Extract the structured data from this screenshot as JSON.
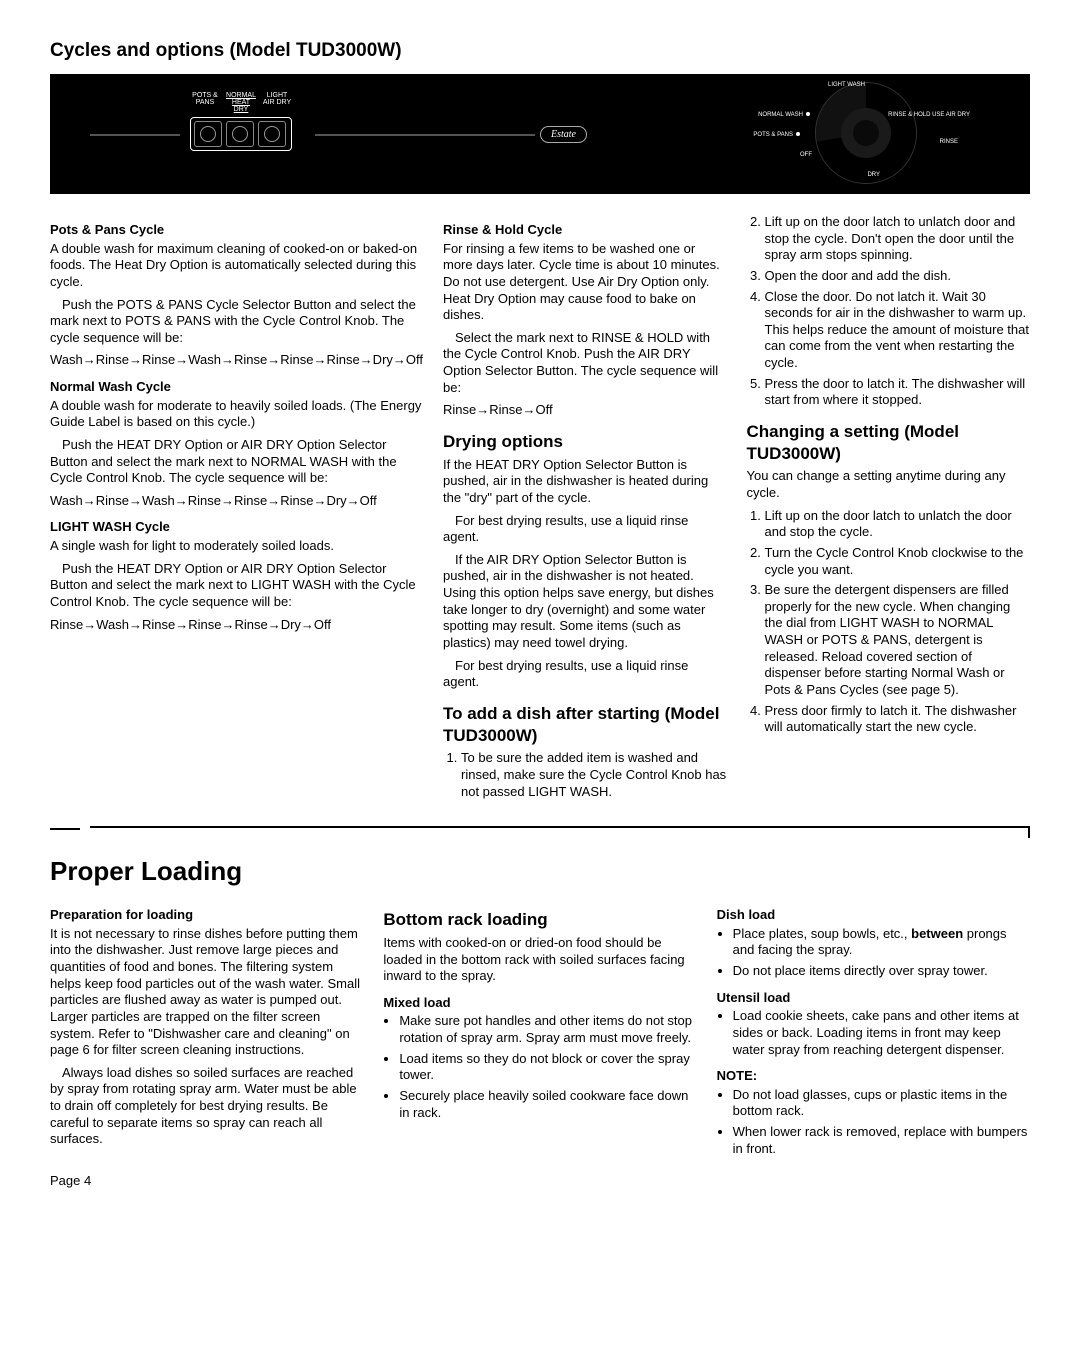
{
  "title": "Cycles and options (Model TUD3000W)",
  "panel": {
    "left_labels": [
      "POTS &\nPANS",
      "NORMAL\nHEAT\nDRY",
      "LIGHT\nAIR\nDRY"
    ],
    "badge": "Estate",
    "right": [
      "LIGHT WASH",
      "NORMAL WASH",
      "POTS & PANS",
      "OFF",
      "RINSE & HOLD\nUSE AIR DRY",
      "RINSE",
      "DRY"
    ]
  },
  "col1": {
    "s1h": "Pots & Pans Cycle",
    "s1p1": "A double wash for maximum cleaning of cooked-on or baked-on foods. The Heat Dry Option is automatically selected during this cycle.",
    "s1p2": "Push the POTS & PANS Cycle Selector Button and select the mark next to POTS & PANS with the Cycle Control Knob. The cycle sequence will be:",
    "s1p3": "Wash→Rinse→Rinse→Wash→Rinse→Rinse→Rinse→Dry→Off",
    "s2h": "Normal Wash Cycle",
    "s2p1": "A double wash for moderate to heavily soiled loads. (The Energy Guide Label is based on this cycle.)",
    "s2p2": "Push the HEAT DRY Option or AIR DRY Option Selector Button and select the mark next to NORMAL WASH with the Cycle Control Knob. The cycle sequence will be:",
    "s2p3": "Wash→Rinse→Wash→Rinse→Rinse→Rinse→Dry→Off",
    "s3h": "LIGHT WASH Cycle",
    "s3p1": "A single wash for light to moderately soiled loads.",
    "s3p2": "Push the HEAT DRY Option or AIR DRY Option Selector Button and select the mark next to LIGHT WASH with the Cycle Control Knob. The cycle sequence will be:",
    "s3p3": "Rinse→Wash→Rinse→Rinse→Rinse→Dry→Off"
  },
  "col2": {
    "s1h": "Rinse & Hold Cycle",
    "s1p1": "For rinsing a few items to be washed one or more days later. Cycle time is about 10 minutes. Do not use detergent. Use Air Dry Option only. Heat Dry Option may cause food to bake on dishes.",
    "s1p2": "Select the mark next to RINSE & HOLD with the Cycle Control Knob. Push the AIR DRY Option Selector Button. The cycle sequence will be:",
    "s1p3": "Rinse→Rinse→Off",
    "s2h": "Drying options",
    "s2p1": "If the HEAT DRY Option Selector Button is pushed, air in the dishwasher is heated during the \"dry\" part of the cycle.",
    "s2p2": "For best drying results, use a liquid rinse agent.",
    "s2p3": "If the AIR DRY Option Selector Button is pushed, air in the dishwasher is not heated. Using this option helps save energy, but dishes take longer to dry (overnight) and some water spotting may result. Some items (such as plastics) may need towel drying.",
    "s2p4": "For best drying results, use a liquid rinse agent.",
    "s3h": "To add a dish after starting (Model TUD3000W)",
    "s3l1": "To be sure the added item is washed and rinsed, make sure the Cycle Control Knob has not passed LIGHT WASH."
  },
  "col3": {
    "l2": "Lift up on the door latch to unlatch door and stop the cycle. Don't open the door until the spray arm stops spinning.",
    "l3": "Open the door and add the dish.",
    "l4": "Close the door. Do not latch it. Wait 30 seconds for air in the dishwasher to warm up. This helps reduce the amount of moisture that can come from the vent when restarting the cycle.",
    "l5": "Press the door to latch it. The dishwasher will start from where it stopped.",
    "s2h": "Changing a setting (Model TUD3000W)",
    "s2p1": "You can change a setting anytime during any cycle.",
    "c1": "Lift up on the door latch to unlatch the door and stop the cycle.",
    "c2": "Turn the Cycle Control Knob clockwise to the cycle you want.",
    "c3": "Be sure the detergent dispensers are filled properly for the new cycle. When changing the dial from LIGHT WASH to NORMAL WASH or POTS & PANS, detergent is released. Reload covered section of dispenser before starting Normal Wash or Pots & Pans Cycles (see page 5).",
    "c4": "Press door firmly to latch it. The dishwasher will automatically start the new cycle."
  },
  "proper": {
    "title": "Proper Loading",
    "c1": {
      "h": "Preparation for loading",
      "p1": "It is not necessary to rinse dishes before putting them into the dishwasher. Just remove large pieces and quantities of food and bones. The filtering system helps keep food particles out of the wash water. Small particles are flushed away as water is pumped out. Larger particles are trapped on the filter screen system. Refer to \"Dishwasher care and cleaning\" on page 6 for filter screen cleaning instructions.",
      "p2": "Always load dishes so soiled surfaces are reached by spray from rotating spray arm. Water must be able to drain off completely for best drying results. Be careful to separate items so spray can reach all surfaces."
    },
    "c2": {
      "h": "Bottom rack loading",
      "p1": "Items with cooked-on or dried-on food should be loaded in the bottom rack with soiled surfaces facing inward to the spray.",
      "mh": "Mixed load",
      "m1": "Make sure pot handles and other items do not stop rotation of spray arm. Spray arm must move freely.",
      "m2": "Load items so they do not block or cover the spray tower.",
      "m3": "Securely place heavily soiled cookware face down in rack."
    },
    "c3": {
      "dh": "Dish load",
      "d1": "Place plates, soup bowls, etc., between prongs and facing the spray.",
      "d2": "Do not place items directly over spray tower.",
      "uh": "Utensil load",
      "u1": "Load cookie sheets, cake pans and other items at sides or back. Loading items in front may keep water spray from reaching detergent dispenser.",
      "nh": "NOTE:",
      "n1": "Do not load glasses, cups or plastic items in the bottom rack.",
      "n2": "When lower rack is removed, replace with bumpers in front."
    }
  },
  "pagenum": "Page 4"
}
